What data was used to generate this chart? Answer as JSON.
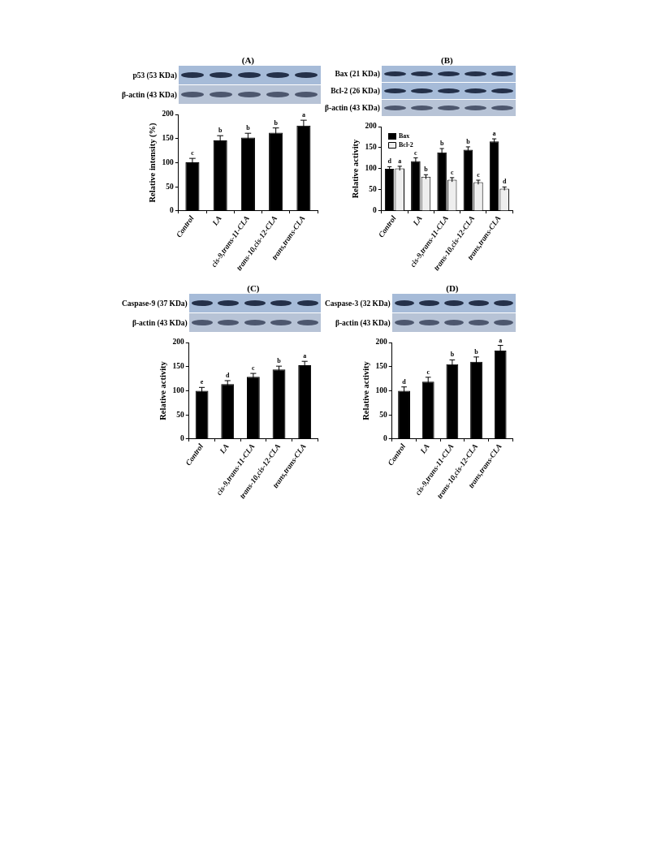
{
  "chart_data": [
    {
      "type": "bar",
      "title": "(A)",
      "ylabel": "Relative intensity (%)",
      "categories": [
        "Control",
        "LA",
        "cis-9,trans-11-CLA",
        "trans-10,cis-12-CLA",
        "trans,trans-CLA"
      ],
      "values": [
        101,
        146,
        152,
        162,
        177
      ],
      "errors": [
        8,
        10,
        9,
        10,
        11
      ],
      "value_labels": [
        "c",
        "b",
        "b",
        "b",
        "a"
      ],
      "color": "#000000",
      "ylim": [
        0,
        200
      ],
      "yticks": [
        0,
        50,
        100,
        150,
        200
      ],
      "annotations": [
        "p53 (53 KDa)",
        "β-actin (43 KDa)"
      ]
    },
    {
      "type": "bar",
      "title": "(B)",
      "ylabel": "Relative activity",
      "categories": [
        "Control",
        "LA",
        "cis-9,trans-11-CLA",
        "trans-10,cis-12-CLA",
        "trans,trans-CLA"
      ],
      "series": [
        {
          "name": "Bax",
          "color": "#000000",
          "values": [
            100,
            118,
            139,
            145,
            165
          ],
          "errors": [
            5,
            8,
            9,
            7,
            6
          ],
          "value_labels": [
            "d",
            "c",
            "b",
            "b",
            "a"
          ]
        },
        {
          "name": "Bcl-2",
          "color": "#eeeeee",
          "values": [
            101,
            81,
            74,
            68,
            53
          ],
          "errors": [
            5,
            5,
            5,
            5,
            4
          ],
          "value_labels": [
            "a",
            "b",
            "c",
            "c",
            "d"
          ]
        }
      ],
      "legend": "top left",
      "ylim": [
        0,
        200
      ],
      "yticks": [
        0,
        50,
        100,
        150,
        200
      ],
      "annotations": [
        "Bax (21 KDa)",
        "Bcl-2 (26 KDa)",
        "β-actin (43 KDa)"
      ]
    },
    {
      "type": "bar",
      "title": "(C)",
      "ylabel": "Relative activity",
      "categories": [
        "Control",
        "LA",
        "cis-9,trans-11-CLA",
        "trans-10,cis-12-CLA",
        "trans,trans-CLA"
      ],
      "values": [
        100,
        114,
        129,
        144,
        153
      ],
      "errors": [
        7,
        7,
        7,
        7,
        8
      ],
      "value_labels": [
        "e",
        "d",
        "c",
        "b",
        "a"
      ],
      "color": "#000000",
      "ylim": [
        0,
        200
      ],
      "yticks": [
        0,
        50,
        100,
        150,
        200
      ],
      "annotations": [
        "Caspase-9 (37 KDa)",
        "β-actin (43 KDa)"
      ]
    },
    {
      "type": "bar",
      "title": "(D)",
      "ylabel": "Relative activity",
      "categories": [
        "Control",
        "LA",
        "cis-9,trans-11-CLA",
        "trans-10,cis-12-CLA",
        "trans,trans-CLA"
      ],
      "values": [
        100,
        119,
        155,
        160,
        183
      ],
      "errors": [
        8,
        9,
        9,
        10,
        11
      ],
      "value_labels": [
        "d",
        "c",
        "b",
        "b",
        "a"
      ],
      "color": "#000000",
      "ylim": [
        0,
        200
      ],
      "yticks": [
        0,
        50,
        100,
        150,
        200
      ],
      "annotations": [
        "Caspase-3 (32 KDa)",
        "β-actin (43 KDa)"
      ]
    }
  ]
}
